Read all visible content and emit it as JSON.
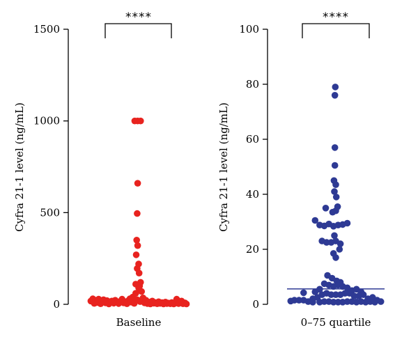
{
  "chart_data": [
    {
      "type": "scatter",
      "ylabel": "Cyfra 21-1 level (ng/mL)",
      "ylim": [
        0,
        1500
      ],
      "yticks": [
        0,
        500,
        1000,
        1500
      ],
      "categories": [
        "Baseline"
      ],
      "significance": "****",
      "color": "#e8231f",
      "points": [
        {
          "x": -0.98,
          "y": 18
        },
        {
          "x": -0.94,
          "y": 30
        },
        {
          "x": -0.91,
          "y": 5
        },
        {
          "x": -0.88,
          "y": 22
        },
        {
          "x": -0.85,
          "y": 10
        },
        {
          "x": -0.82,
          "y": 28
        },
        {
          "x": -0.78,
          "y": 3
        },
        {
          "x": -0.75,
          "y": 15
        },
        {
          "x": -0.72,
          "y": 25
        },
        {
          "x": -0.68,
          "y": 8
        },
        {
          "x": -0.65,
          "y": 20
        },
        {
          "x": -0.61,
          "y": 2
        },
        {
          "x": -0.58,
          "y": 12
        },
        {
          "x": -0.55,
          "y": 18
        },
        {
          "x": -0.51,
          "y": 6
        },
        {
          "x": -0.48,
          "y": 22
        },
        {
          "x": -0.44,
          "y": 10
        },
        {
          "x": -0.41,
          "y": 4
        },
        {
          "x": -0.38,
          "y": 16
        },
        {
          "x": -0.34,
          "y": 28
        },
        {
          "x": -0.31,
          "y": 8
        },
        {
          "x": -0.28,
          "y": 14
        },
        {
          "x": -0.24,
          "y": 3
        },
        {
          "x": -0.21,
          "y": 20
        },
        {
          "x": -0.18,
          "y": 30
        },
        {
          "x": -0.15,
          "y": 12
        },
        {
          "x": -0.12,
          "y": 40
        },
        {
          "x": -0.09,
          "y": 5
        },
        {
          "x": -0.06,
          "y": 60
        },
        {
          "x": -0.03,
          "y": 25
        },
        {
          "x": 0.0,
          "y": 90
        },
        {
          "x": 0.03,
          "y": 15
        },
        {
          "x": 0.06,
          "y": 70
        },
        {
          "x": 0.09,
          "y": 35
        },
        {
          "x": 0.12,
          "y": 8
        },
        {
          "x": 0.15,
          "y": 22
        },
        {
          "x": 0.18,
          "y": 4
        },
        {
          "x": 0.21,
          "y": 12
        },
        {
          "x": 0.24,
          "y": 2
        },
        {
          "x": 0.28,
          "y": 18
        },
        {
          "x": 0.31,
          "y": 6
        },
        {
          "x": 0.34,
          "y": 10
        },
        {
          "x": 0.38,
          "y": 3
        },
        {
          "x": 0.41,
          "y": 14
        },
        {
          "x": 0.44,
          "y": 5
        },
        {
          "x": 0.48,
          "y": 9
        },
        {
          "x": 0.51,
          "y": 2
        },
        {
          "x": 0.55,
          "y": 12
        },
        {
          "x": 0.58,
          "y": 4
        },
        {
          "x": 0.61,
          "y": 7
        },
        {
          "x": 0.65,
          "y": 3
        },
        {
          "x": 0.68,
          "y": 10
        },
        {
          "x": 0.72,
          "y": 2
        },
        {
          "x": 0.75,
          "y": 6
        },
        {
          "x": 0.78,
          "y": 28
        },
        {
          "x": 0.82,
          "y": 4
        },
        {
          "x": 0.85,
          "y": 12
        },
        {
          "x": 0.88,
          "y": 18
        },
        {
          "x": 0.91,
          "y": 3
        },
        {
          "x": 0.95,
          "y": 8
        },
        {
          "x": 0.98,
          "y": 2
        },
        {
          "x": -0.08,
          "y": 1000
        },
        {
          "x": -0.02,
          "y": 1000
        },
        {
          "x": 0.04,
          "y": 1000
        },
        {
          "x": -0.02,
          "y": 660
        },
        {
          "x": -0.03,
          "y": 495
        },
        {
          "x": -0.04,
          "y": 350
        },
        {
          "x": -0.02,
          "y": 320
        },
        {
          "x": -0.05,
          "y": 270
        },
        {
          "x": 0.0,
          "y": 220
        },
        {
          "x": -0.03,
          "y": 195
        },
        {
          "x": 0.01,
          "y": 170
        },
        {
          "x": 0.04,
          "y": 120
        },
        {
          "x": -0.06,
          "y": 110
        },
        {
          "x": 0.02,
          "y": 100
        }
      ]
    },
    {
      "type": "scatter",
      "ylabel": "Cyfra 21-1 level (ng/mL)",
      "ylim": [
        0,
        100
      ],
      "yticks": [
        0,
        20,
        40,
        60,
        80,
        100
      ],
      "categories": [
        "0–75 quartile"
      ],
      "significance": "****",
      "color": "#2e3a94",
      "median_line": 5.6,
      "points": [
        {
          "x": -0.01,
          "y": 79
        },
        {
          "x": -0.02,
          "y": 76
        },
        {
          "x": -0.02,
          "y": 57
        },
        {
          "x": -0.02,
          "y": 50.5
        },
        {
          "x": -0.04,
          "y": 45
        },
        {
          "x": 0.0,
          "y": 43.5
        },
        {
          "x": -0.03,
          "y": 41
        },
        {
          "x": 0.01,
          "y": 39
        },
        {
          "x": -0.22,
          "y": 35
        },
        {
          "x": 0.04,
          "y": 35.5
        },
        {
          "x": -0.07,
          "y": 33.5
        },
        {
          "x": 0.0,
          "y": 34
        },
        {
          "x": -0.45,
          "y": 30.5
        },
        {
          "x": -0.35,
          "y": 28.8
        },
        {
          "x": -0.25,
          "y": 28.5
        },
        {
          "x": -0.15,
          "y": 29.2
        },
        {
          "x": -0.05,
          "y": 28.4
        },
        {
          "x": 0.05,
          "y": 28.8
        },
        {
          "x": 0.15,
          "y": 29
        },
        {
          "x": 0.25,
          "y": 29.5
        },
        {
          "x": -0.3,
          "y": 23
        },
        {
          "x": -0.2,
          "y": 22.5
        },
        {
          "x": -0.1,
          "y": 22.5
        },
        {
          "x": 0.0,
          "y": 23
        },
        {
          "x": 0.1,
          "y": 22
        },
        {
          "x": 0.08,
          "y": 20
        },
        {
          "x": -0.05,
          "y": 18.5
        },
        {
          "x": 0.0,
          "y": 17
        },
        {
          "x": -0.03,
          "y": 25
        },
        {
          "x": -0.18,
          "y": 10.5
        },
        {
          "x": -0.08,
          "y": 9.5
        },
        {
          "x": 0.02,
          "y": 8.5
        },
        {
          "x": 0.1,
          "y": 8
        },
        {
          "x": -0.25,
          "y": 7.5
        },
        {
          "x": -0.15,
          "y": 7
        },
        {
          "x": -0.05,
          "y": 6.5
        },
        {
          "x": 0.05,
          "y": 7
        },
        {
          "x": 0.15,
          "y": 6.5
        },
        {
          "x": 0.25,
          "y": 6
        },
        {
          "x": -0.35,
          "y": 5.5
        },
        {
          "x": 0.35,
          "y": 5
        },
        {
          "x": 0.45,
          "y": 5.5
        },
        {
          "x": 0.55,
          "y": 4.5
        },
        {
          "x": -0.45,
          "y": 4.5
        },
        {
          "x": -0.7,
          "y": 4.2
        },
        {
          "x": 0.6,
          "y": 3.5
        },
        {
          "x": 0.5,
          "y": 3
        },
        {
          "x": 0.4,
          "y": 3
        },
        {
          "x": 0.3,
          "y": 4
        },
        {
          "x": 0.2,
          "y": 4
        },
        {
          "x": 0.1,
          "y": 3.5
        },
        {
          "x": 0.0,
          "y": 3.5
        },
        {
          "x": -0.1,
          "y": 3.5
        },
        {
          "x": -0.2,
          "y": 4
        },
        {
          "x": -0.3,
          "y": 3.5
        },
        {
          "x": -0.4,
          "y": 2.5
        },
        {
          "x": -0.5,
          "y": 2
        },
        {
          "x": 0.7,
          "y": 2
        },
        {
          "x": 0.8,
          "y": 2.5
        },
        {
          "x": 0.9,
          "y": 1.5
        },
        {
          "x": -0.98,
          "y": 1.2
        },
        {
          "x": -0.9,
          "y": 1.5
        },
        {
          "x": -0.8,
          "y": 1.5
        },
        {
          "x": -0.7,
          "y": 1.5
        },
        {
          "x": -0.6,
          "y": 1
        },
        {
          "x": -0.5,
          "y": 0.8
        },
        {
          "x": -0.35,
          "y": 0.8
        },
        {
          "x": -0.25,
          "y": 1
        },
        {
          "x": -0.15,
          "y": 1
        },
        {
          "x": -0.05,
          "y": 0.8
        },
        {
          "x": 0.05,
          "y": 0.8
        },
        {
          "x": 0.15,
          "y": 0.8
        },
        {
          "x": 0.25,
          "y": 1
        },
        {
          "x": 0.35,
          "y": 1
        },
        {
          "x": 0.45,
          "y": 0.8
        },
        {
          "x": 0.55,
          "y": 1
        },
        {
          "x": 0.65,
          "y": 0.8
        },
        {
          "x": 0.75,
          "y": 1
        },
        {
          "x": 0.85,
          "y": 0.8
        },
        {
          "x": 0.98,
          "y": 1
        }
      ]
    }
  ]
}
